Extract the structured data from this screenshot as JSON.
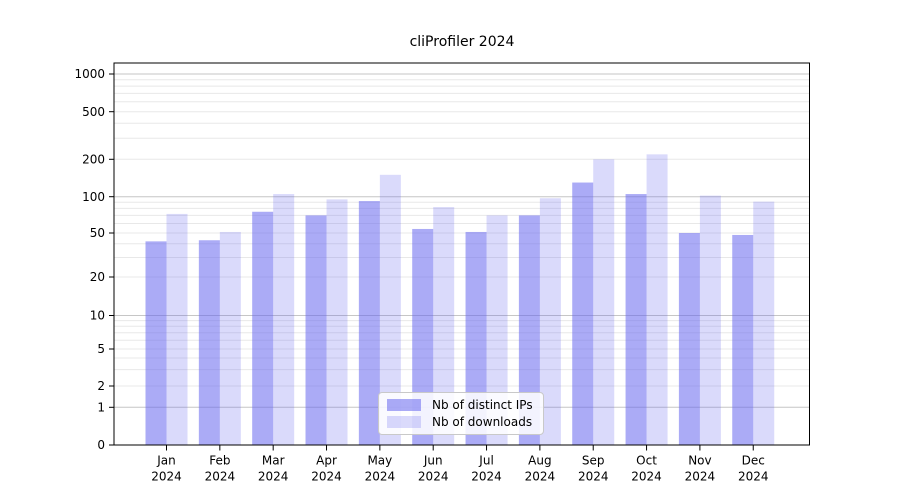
{
  "chart_data": {
    "type": "bar",
    "title": "cliProfiler 2024",
    "categories": [
      {
        "month": "Jan",
        "year": "2024"
      },
      {
        "month": "Feb",
        "year": "2024"
      },
      {
        "month": "Mar",
        "year": "2024"
      },
      {
        "month": "Apr",
        "year": "2024"
      },
      {
        "month": "May",
        "year": "2024"
      },
      {
        "month": "Jun",
        "year": "2024"
      },
      {
        "month": "Jul",
        "year": "2024"
      },
      {
        "month": "Aug",
        "year": "2024"
      },
      {
        "month": "Sep",
        "year": "2024"
      },
      {
        "month": "Oct",
        "year": "2024"
      },
      {
        "month": "Nov",
        "year": "2024"
      },
      {
        "month": "Dec",
        "year": "2024"
      }
    ],
    "series": [
      {
        "name": "Nb of distinct IPs",
        "color": "rgba(102,102,238,0.55)",
        "values": [
          42,
          43,
          75,
          70,
          92,
          54,
          51,
          70,
          130,
          105,
          50,
          48
        ]
      },
      {
        "name": "Nb of downloads",
        "color": "rgba(102,102,238,0.24)",
        "values": [
          72,
          51,
          105,
          95,
          150,
          82,
          70,
          97,
          200,
          220,
          102,
          91
        ]
      }
    ],
    "yscale": "symlog",
    "yticks": [
      0,
      1,
      2,
      5,
      10,
      20,
      50,
      100,
      200,
      500,
      1000
    ],
    "ylim": [
      0,
      1230
    ],
    "grid": true,
    "legend_position": "lower-center",
    "colors": {
      "major_grid": "#c6c6c6",
      "minor_grid": "#e8e8e8",
      "axis": "#000000"
    }
  }
}
